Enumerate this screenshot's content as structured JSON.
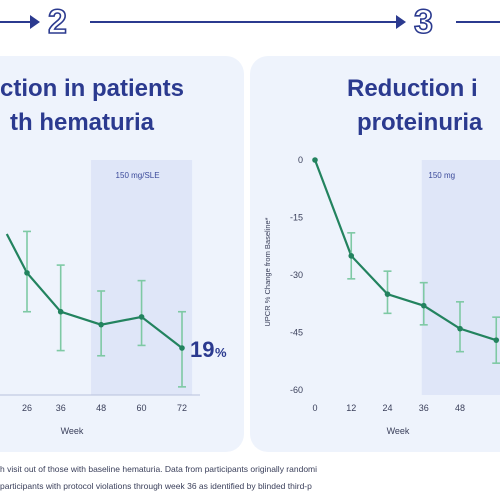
{
  "steps": [
    "2",
    "3"
  ],
  "panels": [
    {
      "title_lines": [
        "ction in patients",
        "th hematuria"
      ],
      "dose_label": "150 mg/SLE",
      "end_label": "19",
      "end_label_unit": "%"
    },
    {
      "title_lines": [
        "Reduction i",
        "proteinuria"
      ],
      "dose_label": "150 mg",
      "ylabel": "UPCR % Change from Baseline*"
    }
  ],
  "footnotes": [
    "h visit out of those with baseline hematuria. Data from participants originally randomi",
    "participants with protocol violations through week 36 as identified by blinded third-p"
  ],
  "colors": {
    "line": "#23835f",
    "error": "#7ec9a4",
    "accent": "#2b3a8f",
    "dose_band": "#dfe6f8"
  },
  "chart_data": [
    {
      "type": "line",
      "title": "",
      "xlabel": "Week",
      "ylabel": "",
      "x": [
        20,
        26,
        36,
        48,
        60,
        72
      ],
      "x_tick_labels": [
        "26",
        "36",
        "48",
        "60",
        "72"
      ],
      "series": [
        {
          "values": [
            75,
            60,
            45,
            40,
            43,
            31
          ],
          "err_low": [
            57,
            45,
            30,
            28,
            32,
            16
          ],
          "err_high": [
            92,
            76,
            63,
            53,
            57,
            45
          ]
        }
      ],
      "dose_band_x": [
        45,
        75
      ],
      "note": "hematuria panel, partially cropped; y-axis not visible"
    },
    {
      "type": "line",
      "title": "",
      "xlabel": "Week",
      "ylabel": "UPCR % Change from Baseline*",
      "x": [
        0,
        12,
        24,
        36,
        48,
        60
      ],
      "x_tick_labels": [
        "0",
        "12",
        "24",
        "36",
        "48"
      ],
      "y_ticks": [
        0,
        -15,
        -30,
        -45,
        -60
      ],
      "ylim": [
        -60,
        0
      ],
      "series": [
        {
          "values": [
            0,
            -25,
            -35,
            -38,
            -44,
            -47
          ],
          "err_low": [
            0,
            -31,
            -40,
            -43,
            -50,
            -53
          ],
          "err_high": [
            0,
            -19,
            -29,
            -32,
            -37,
            -41
          ]
        }
      ],
      "dose_band_x": [
        36,
        62
      ],
      "note": "proteinuria panel, partially cropped on the right"
    }
  ]
}
